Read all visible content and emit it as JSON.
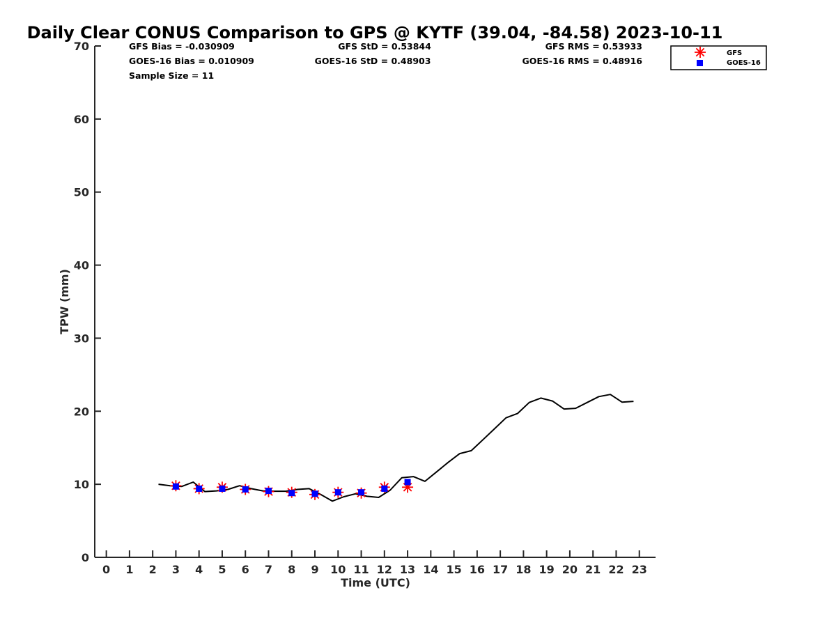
{
  "chart_data": {
    "type": "line",
    "title": "Daily Clear CONUS Comparison to GPS @ KYTF (39.04, -84.58) 2023-10-11",
    "xlabel": "Time (UTC)",
    "ylabel": "TPW (mm)",
    "xlim": [
      -0.5,
      23.7
    ],
    "ylim": [
      0,
      70
    ],
    "xticks": [
      "0",
      "1",
      "2",
      "3",
      "4",
      "5",
      "6",
      "7",
      "8",
      "9",
      "10",
      "11",
      "12",
      "13",
      "14",
      "15",
      "16",
      "17",
      "18",
      "19",
      "20",
      "21",
      "22",
      "23"
    ],
    "yticks": [
      "0",
      "10",
      "20",
      "30",
      "40",
      "50",
      "60",
      "70"
    ],
    "grid": false,
    "legend_position": "top-right",
    "stats": {
      "gfs_bias": "GFS Bias = -0.030909",
      "gfs_std": "GFS StD = 0.53844",
      "gfs_rms": "GFS RMS = 0.53933",
      "goes_bias": "GOES-16 Bias = 0.010909",
      "goes_std": "GOES-16 StD = 0.48903",
      "goes_rms": "GOES-16 RMS = 0.48916",
      "sample_size": "Sample Size = 11"
    },
    "series": [
      {
        "name": "GPS",
        "style": "line",
        "color": "#000000",
        "points": [
          [
            2.25,
            10.0
          ],
          [
            2.75,
            9.8
          ],
          [
            3.25,
            9.7
          ],
          [
            3.75,
            10.3
          ],
          [
            4.25,
            9.0
          ],
          [
            4.75,
            9.1
          ],
          [
            5.25,
            9.3
          ],
          [
            5.75,
            9.8
          ],
          [
            6.25,
            9.4
          ],
          [
            6.75,
            9.1
          ],
          [
            7.25,
            9.05
          ],
          [
            7.75,
            9.05
          ],
          [
            8.25,
            9.3
          ],
          [
            8.75,
            9.4
          ],
          [
            9.25,
            8.6
          ],
          [
            9.75,
            7.7
          ],
          [
            10.25,
            8.3
          ],
          [
            10.75,
            8.7
          ],
          [
            11.25,
            8.35
          ],
          [
            11.75,
            8.2
          ],
          [
            12.25,
            9.2
          ],
          [
            12.75,
            10.9
          ],
          [
            13.25,
            11.05
          ],
          [
            13.75,
            10.4
          ],
          [
            14.25,
            11.7
          ],
          [
            14.75,
            13.0
          ],
          [
            15.25,
            14.2
          ],
          [
            15.75,
            14.6
          ],
          [
            16.25,
            16.1
          ],
          [
            16.75,
            17.6
          ],
          [
            17.25,
            19.1
          ],
          [
            17.75,
            19.7
          ],
          [
            18.25,
            21.2
          ],
          [
            18.75,
            21.8
          ],
          [
            19.25,
            21.4
          ],
          [
            19.75,
            20.3
          ],
          [
            20.25,
            20.4
          ],
          [
            20.75,
            21.2
          ],
          [
            21.25,
            22.0
          ],
          [
            21.75,
            22.3
          ],
          [
            22.25,
            21.25
          ],
          [
            22.75,
            21.35
          ]
        ]
      },
      {
        "name": "GFS",
        "style": "marker",
        "marker": "asterisk",
        "color": "#ff0000",
        "points": [
          [
            3,
            9.8
          ],
          [
            4,
            9.4
          ],
          [
            5,
            9.6
          ],
          [
            6,
            9.3
          ],
          [
            7,
            9.0
          ],
          [
            8,
            8.9
          ],
          [
            9,
            8.6
          ],
          [
            10,
            8.9
          ],
          [
            11,
            8.8
          ],
          [
            12,
            9.6
          ],
          [
            13,
            9.6
          ]
        ]
      },
      {
        "name": "GOES-16",
        "style": "marker",
        "marker": "square",
        "color": "#0000ff",
        "points": [
          [
            3,
            9.7
          ],
          [
            4,
            9.4
          ],
          [
            5,
            9.4
          ],
          [
            6,
            9.3
          ],
          [
            7,
            9.1
          ],
          [
            8,
            8.8
          ],
          [
            9,
            8.7
          ],
          [
            10,
            8.9
          ],
          [
            11,
            8.9
          ],
          [
            12,
            9.4
          ],
          [
            13,
            10.3
          ]
        ]
      }
    ]
  }
}
